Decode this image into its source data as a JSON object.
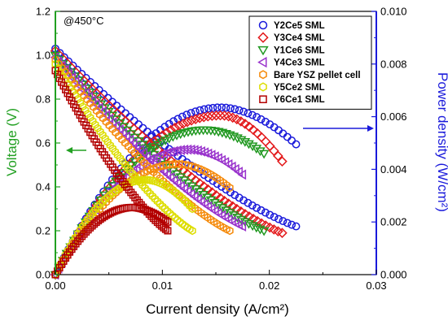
{
  "chart_data": {
    "type": "scatter",
    "annotation": "@450°C",
    "xlabel": "Current density (A/cm²)",
    "ylabel_left": "Voltage (V)",
    "ylabel_right": "Power density (W/cm²)",
    "xlim": [
      0,
      0.03
    ],
    "ylim_left": [
      0,
      1.2
    ],
    "ylim_right": [
      0,
      0.01
    ],
    "x_ticks": [
      0.0,
      0.01,
      0.02,
      0.03
    ],
    "x_tick_labels": [
      "0.00",
      "0.01",
      "0.02",
      "0.03"
    ],
    "y_left_ticks": [
      0.0,
      0.2,
      0.4,
      0.6,
      0.8,
      1.0,
      1.2
    ],
    "y_left_tick_labels": [
      "0.0",
      "0.2",
      "0.4",
      "0.6",
      "0.8",
      "1.0",
      "1.2"
    ],
    "y_right_ticks": [
      0.0,
      0.002,
      0.004,
      0.006,
      0.008,
      0.01
    ],
    "y_right_tick_labels": [
      "0.000",
      "0.002",
      "0.004",
      "0.006",
      "0.008",
      "0.010"
    ],
    "grid": false,
    "legend_placement": "top-right",
    "left_axis_color": "#22a022",
    "right_axis_color": "#1a1adb",
    "series": [
      {
        "name": "Y2Ce5 SML",
        "marker": "circle",
        "color": "#1a1adb",
        "ocv": 1.03,
        "i_max": 0.0225,
        "v_end": 0.22,
        "p_max": 0.00635,
        "i_peak": 0.0155,
        "p_end": 0.00495
      },
      {
        "name": "Y3Ce4 SML",
        "marker": "diamond",
        "color": "#e31a1c",
        "ocv": 1.02,
        "i_max": 0.0212,
        "v_end": 0.19,
        "p_max": 0.00605,
        "i_peak": 0.0155,
        "p_end": 0.0043
      },
      {
        "name": "Y1Ce6 SML",
        "marker": "triangle-down",
        "color": "#229922",
        "ocv": 1.0,
        "i_max": 0.0195,
        "v_end": 0.2,
        "p_max": 0.0055,
        "i_peak": 0.014,
        "p_end": 0.0046
      },
      {
        "name": "Y4Ce3 SML",
        "marker": "triangle-left",
        "color": "#9933cc",
        "ocv": 0.99,
        "i_max": 0.0175,
        "v_end": 0.22,
        "p_max": 0.00475,
        "i_peak": 0.0125,
        "p_end": 0.0038
      },
      {
        "name": "Bare YSZ pellet cell",
        "marker": "hexagon",
        "color": "#f58a0b",
        "ocv": 0.98,
        "i_max": 0.0163,
        "v_end": 0.2,
        "p_max": 0.0042,
        "i_peak": 0.0115,
        "p_end": 0.0033
      },
      {
        "name": "Y5Ce2 SML",
        "marker": "hexagon",
        "color": "#dddd00",
        "ocv": 0.96,
        "i_max": 0.0128,
        "v_end": 0.2,
        "p_max": 0.0036,
        "i_peak": 0.0085,
        "p_end": 0.0025
      },
      {
        "name": "Y6Ce1 SML",
        "marker": "square",
        "color": "#b30000",
        "ocv": 0.93,
        "i_max": 0.0105,
        "v_end": 0.2,
        "p_max": 0.00255,
        "i_peak": 0.0072,
        "p_end": 0.002
      }
    ]
  }
}
